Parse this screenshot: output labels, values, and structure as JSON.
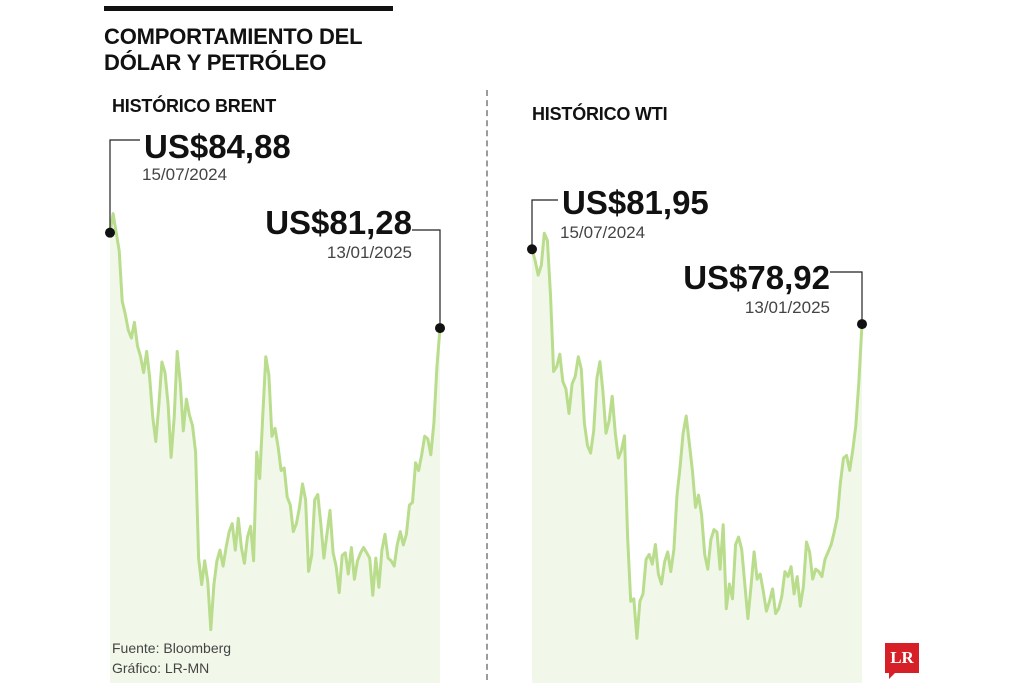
{
  "header": {
    "title": "COMPORTAMIENTO DEL\nDÓLAR Y PETRÓLEO"
  },
  "footer": {
    "source": "Fuente: Bloomberg",
    "graphic": "Gráfico: LR-MN"
  },
  "logo": {
    "text": "LR",
    "color": "#d71f28"
  },
  "colors": {
    "line": "#b9dd8c",
    "fill": "#f1f8ea",
    "marker": "#111111"
  },
  "chart_data": [
    {
      "type": "area",
      "title": "HISTÓRICO BRENT",
      "ylim": [
        70,
        86
      ],
      "start_label": {
        "price": "US$84,88",
        "date": "15/07/2024"
      },
      "end_label": {
        "price": "US$81,28",
        "date": "13/01/2025"
      },
      "series": [
        {
          "values": [
            84.88,
            85.6,
            84.9,
            84.2,
            82.3,
            81.8,
            81.2,
            80.9,
            81.5,
            80.6,
            80.2,
            79.6,
            80.4,
            79.4,
            77.9,
            77.0,
            78.4,
            80.0,
            79.6,
            78.4,
            76.4,
            77.9,
            80.4,
            79.2,
            77.4,
            78.6,
            78.0,
            77.6,
            76.6,
            72.6,
            71.6,
            72.5,
            71.7,
            69.9,
            71.6,
            72.5,
            72.9,
            72.3,
            73.0,
            73.6,
            73.9,
            72.9,
            74.1,
            73.0,
            72.4,
            73.4,
            73.8,
            72.5,
            76.6,
            75.6,
            78.0,
            80.2,
            79.5,
            77.2,
            77.5,
            76.8,
            75.9,
            76.0,
            74.9,
            74.6,
            73.6,
            73.9,
            74.5,
            75.4,
            74.8,
            72.1,
            72.7,
            74.8,
            75.0,
            73.9,
            72.6,
            73.5,
            74.4,
            72.8,
            72.3,
            71.3,
            72.7,
            72.8,
            72.0,
            73.0,
            71.8,
            72.5,
            72.8,
            73.0,
            72.8,
            72.6,
            71.2,
            72.6,
            71.5,
            72.9,
            73.5,
            72.6,
            72.5,
            72.3,
            73.1,
            73.6,
            73.1,
            73.5,
            74.6,
            74.7,
            76.2,
            75.9,
            76.5,
            77.2,
            77.1,
            76.5,
            77.7,
            79.8,
            81.28
          ]
        }
      ]
    },
    {
      "type": "area",
      "title": "HISTÓRICO WTI",
      "ylim": [
        65,
        82
      ],
      "start_label": {
        "price": "US$81,95",
        "date": "15/07/2024"
      },
      "end_label": {
        "price": "US$78,92",
        "date": "13/01/2025"
      },
      "series": [
        {
          "values": [
            81.95,
            81.5,
            80.9,
            81.3,
            82.6,
            82.3,
            80.1,
            77.0,
            77.2,
            77.7,
            76.6,
            76.3,
            75.3,
            76.5,
            76.8,
            77.6,
            77.1,
            74.9,
            74.0,
            73.7,
            74.6,
            76.7,
            77.4,
            76.2,
            74.5,
            75.0,
            76.0,
            74.5,
            73.5,
            73.8,
            74.4,
            70.3,
            67.7,
            67.8,
            66.2,
            67.7,
            68.0,
            69.4,
            69.6,
            69.2,
            70.0,
            68.8,
            68.4,
            69.3,
            69.7,
            68.9,
            69.8,
            72.0,
            73.1,
            74.5,
            75.2,
            74.1,
            73.0,
            71.5,
            72.0,
            71.2,
            69.6,
            69.0,
            70.2,
            70.6,
            70.5,
            69.0,
            70.8,
            67.4,
            68.4,
            67.8,
            70.0,
            70.3,
            69.8,
            68.4,
            67.0,
            68.3,
            69.7,
            68.6,
            68.8,
            68.1,
            67.3,
            67.7,
            68.2,
            67.2,
            67.4,
            67.9,
            68.9,
            68.7,
            69.1,
            68.0,
            68.7,
            67.5,
            68.3,
            70.1,
            69.7,
            68.6,
            69.0,
            68.9,
            68.7,
            69.4,
            69.7,
            70.0,
            70.5,
            71.1,
            72.5,
            73.5,
            73.6,
            73.0,
            73.8,
            74.8,
            76.6,
            78.92
          ]
        }
      ]
    }
  ]
}
